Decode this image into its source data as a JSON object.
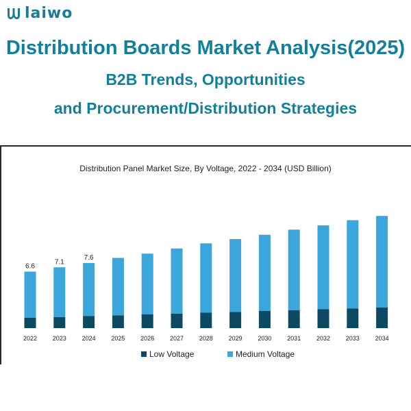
{
  "brand": {
    "logo_text": "laiwo",
    "logo_icon": "w-logo-icon",
    "color": "#1a7d97"
  },
  "headline": {
    "line1": "Distribution Boards Market Analysis(2025)",
    "line2": "B2B Trends, Opportunities",
    "line3": "and Procurement/Distribution Strategies"
  },
  "chart_data": {
    "type": "bar",
    "stacked": true,
    "title": "Distribution Panel Market Size, By Voltage, 2022 - 2034 (USD Billion)",
    "categories": [
      "2022",
      "2023",
      "2024",
      "2025",
      "2026",
      "2027",
      "2028",
      "2029",
      "2030",
      "2031",
      "2032",
      "2033",
      "2034"
    ],
    "series": [
      {
        "name": "Low Voltage",
        "color": "#0b4a62",
        "values": [
          1.2,
          1.3,
          1.4,
          1.5,
          1.6,
          1.7,
          1.8,
          1.9,
          2.0,
          2.1,
          2.2,
          2.3,
          2.4
        ]
      },
      {
        "name": "Medium Voltage",
        "color": "#3aa6dc",
        "values": [
          5.4,
          5.8,
          6.2,
          6.7,
          7.1,
          7.6,
          8.1,
          8.5,
          8.9,
          9.4,
          9.8,
          10.3,
          10.7
        ]
      }
    ],
    "data_labels": [
      "6.6",
      "7.1",
      "7.6",
      "",
      "",
      "",
      "",
      "",
      "",
      "",
      "",
      "",
      ""
    ],
    "ylim": [
      0,
      14
    ],
    "grid": false,
    "legend": "bottom"
  }
}
